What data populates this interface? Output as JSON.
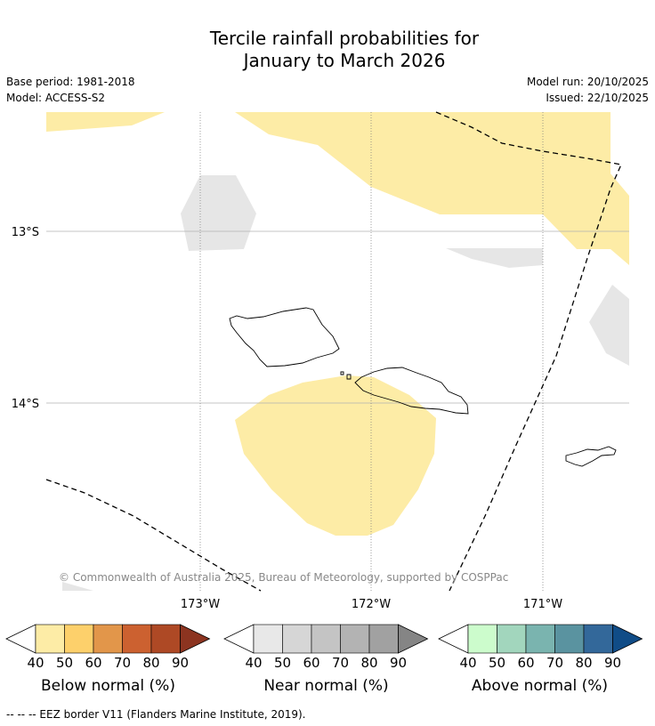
{
  "title": {
    "line1": "Tercile rainfall probabilities for",
    "line2": "January to March 2026"
  },
  "info": {
    "base_period": "Base period: 1981-2018",
    "model": "Model: ACCESS-S2",
    "model_run": "Model run: 20/10/2025",
    "issued": "Issued: 22/10/2025"
  },
  "map": {
    "lat_labels": [
      "13°S",
      "14°S"
    ],
    "lon_labels": [
      "173°W",
      "172°W",
      "171°W"
    ],
    "copyright": "© Commonwealth of Australia 2025, Bureau of Meteorology, supported by COSPPac"
  },
  "colorbars": [
    {
      "name": "below",
      "label": "Below normal (%)",
      "ticks": [
        "40",
        "50",
        "60",
        "70",
        "80",
        "90"
      ],
      "colors": [
        "#fdeca6",
        "#fdd06b",
        "#e2964a",
        "#cc6130",
        "#ae4925",
        "#8c3420"
      ]
    },
    {
      "name": "near",
      "label": "Near normal (%)",
      "ticks": [
        "40",
        "50",
        "60",
        "70",
        "80",
        "90"
      ],
      "colors": [
        "#e8e8e8",
        "#d6d6d6",
        "#c4c4c4",
        "#b3b3b3",
        "#a1a1a1",
        "#858585"
      ]
    },
    {
      "name": "above",
      "label": "Above normal (%)",
      "ticks": [
        "40",
        "50",
        "60",
        "70",
        "80",
        "90"
      ],
      "colors": [
        "#ccfccc",
        "#a2d6bd",
        "#7ab4af",
        "#5a93a0",
        "#33689a",
        "#104c87"
      ]
    }
  ],
  "legend_note": "--  --  -- EEZ border V11 (Flanders Marine Institute, 2019)."
}
